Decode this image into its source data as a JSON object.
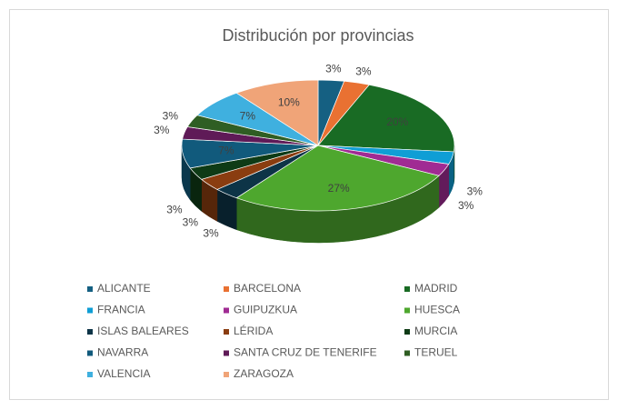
{
  "chart_data": {
    "type": "pie3d",
    "title": "Distribución por provincias",
    "categories": [
      "ALICANTE",
      "BARCELONA",
      "MADRID",
      "FRANCIA",
      "GUIPUZKUA",
      "HUESCA",
      "ISLAS BALEARES",
      "LÉRIDA",
      "MURCIA",
      "NAVARRA",
      "SANTA CRUZ DE TENERIFE",
      "TERUEL",
      "VALENCIA",
      "ZARAGOZA"
    ],
    "values": [
      3,
      3,
      20,
      3,
      3,
      27,
      3,
      3,
      3,
      7,
      3,
      3,
      7,
      10
    ],
    "value_labels": [
      "3%",
      "3%",
      "20%",
      "3%",
      "3%",
      "27%",
      "3%",
      "3%",
      "3%",
      "7%",
      "3%",
      "3%",
      "7%",
      "10%"
    ],
    "colors": [
      "#156082",
      "#e97132",
      "#196b24",
      "#0f9ed5",
      "#a02b93",
      "#4ea72e",
      "#0d3447",
      "#8a3d10",
      "#0e3b16",
      "#115a7c",
      "#5f1a57",
      "#2f5e23",
      "#3fb0df",
      "#f0a478"
    ],
    "legend": "bottom"
  }
}
